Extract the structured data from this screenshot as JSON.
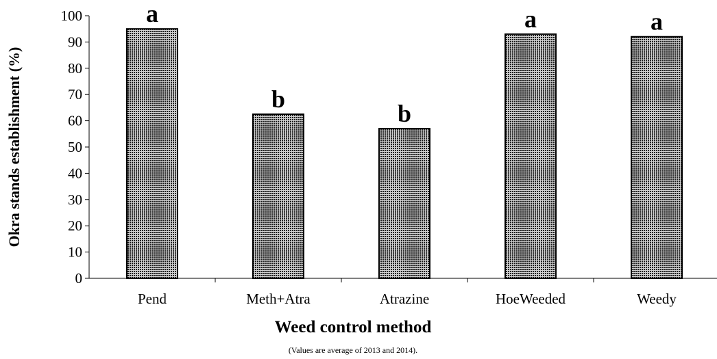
{
  "chart_data": {
    "type": "bar",
    "x_label": "Weed control method",
    "y_label": "Okra stands establishment (%)",
    "note": "(Values are average of 2013 and 2014).",
    "categories": [
      "Pend",
      "Meth+Atra",
      "Atrazine",
      "HoeWeeded",
      "Weedy"
    ],
    "values": [
      95,
      62.5,
      57,
      93,
      92
    ],
    "annotations": [
      "a",
      "b",
      "b",
      "a",
      "a"
    ],
    "color": "#333333",
    "ylim": [
      0,
      100
    ],
    "yticks": [
      0,
      10,
      20,
      30,
      40,
      50,
      60,
      70,
      80,
      90,
      100
    ],
    "grid": false
  }
}
